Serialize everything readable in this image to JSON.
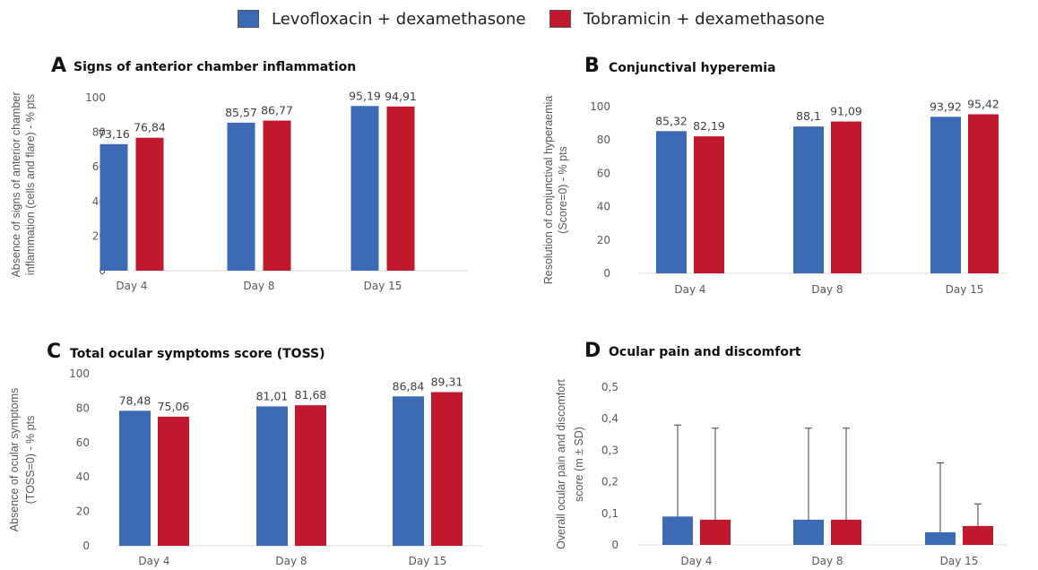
{
  "legend": {
    "items": [
      {
        "label": "Levofloxacin + dexamethasone",
        "color": "#3c6ab5"
      },
      {
        "label": "Tobramicin + dexamethasone",
        "color": "#c0192e"
      }
    ]
  },
  "chart_data": [
    {
      "type": "bar",
      "panel": "A",
      "title": "Signs of anterior chamber inflammation",
      "ylabel": [
        "Absence of signs of anterior chamber",
        "inflammation (cells and flare) - % pts"
      ],
      "categories": [
        "Day 4",
        "Day 8",
        "Day 15"
      ],
      "ylim": [
        0,
        100
      ],
      "yticks": [
        0,
        20,
        40,
        60,
        80,
        100
      ],
      "ytick_labels": [
        "0",
        "20",
        "40",
        "60",
        "80",
        "100"
      ],
      "series": [
        {
          "name": "Levofloxacin + dexamethasone",
          "values": [
            73.16,
            85.57,
            95.19
          ],
          "labels": [
            "73,16",
            "85,57",
            "95,19"
          ]
        },
        {
          "name": "Tobramicin + dexamethasone",
          "values": [
            76.84,
            86.77,
            94.91
          ],
          "labels": [
            "76,84",
            "86,77",
            "94,91"
          ]
        }
      ]
    },
    {
      "type": "bar",
      "panel": "B",
      "title": "Conjunctival hyperemia",
      "ylabel": [
        "Resolution of conjunctival hyperaemia",
        "(Score=0) - % pts"
      ],
      "categories": [
        "Day 4",
        "Day 8",
        "Day 15"
      ],
      "ylim": [
        0,
        100
      ],
      "yticks": [
        0,
        20,
        40,
        60,
        80,
        100
      ],
      "ytick_labels": [
        "0",
        "20",
        "40",
        "60",
        "80",
        "100"
      ],
      "series": [
        {
          "name": "Levofloxacin + dexamethasone",
          "values": [
            85.32,
            88.1,
            93.92
          ],
          "labels": [
            "85,32",
            "88,1",
            "93,92"
          ]
        },
        {
          "name": "Tobramicin + dexamethasone",
          "values": [
            82.19,
            91.09,
            95.42
          ],
          "labels": [
            "82,19",
            "91,09",
            "95,42"
          ]
        }
      ]
    },
    {
      "type": "bar",
      "panel": "C",
      "title": "Total ocular symptoms score  (TOSS)",
      "ylabel": [
        "Absence of ocular symptoms",
        "(TOSS=0) - % pts"
      ],
      "categories": [
        "Day 4",
        "Day 8",
        "Day 15"
      ],
      "ylim": [
        0,
        100
      ],
      "yticks": [
        0,
        20,
        40,
        60,
        80,
        100
      ],
      "ytick_labels": [
        "0",
        "20",
        "40",
        "60",
        "80",
        "100"
      ],
      "series": [
        {
          "name": "Levofloxacin + dexamethasone",
          "values": [
            78.48,
            81.01,
            86.84
          ],
          "labels": [
            "78,48",
            "81,01",
            "86,84"
          ]
        },
        {
          "name": "Tobramicin + dexamethasone",
          "values": [
            75.06,
            81.68,
            89.31
          ],
          "labels": [
            "75,06",
            "81,68",
            "89,31"
          ]
        }
      ]
    },
    {
      "type": "bar",
      "panel": "D",
      "title": "Ocular pain and discomfort",
      "ylabel": [
        "Overall ocular pain and discomfort",
        "score   (m ± SD)"
      ],
      "categories": [
        "Day 4",
        "Day 8",
        "Day 15"
      ],
      "ylim": [
        0,
        0.5
      ],
      "yticks": [
        0,
        0.1,
        0.2,
        0.3,
        0.4,
        0.5
      ],
      "ytick_labels": [
        "0",
        "0,1",
        "0,2",
        "0,3",
        "0,4",
        "0,5"
      ],
      "series": [
        {
          "name": "Levofloxacin + dexamethasone",
          "values": [
            0.09,
            0.08,
            0.04
          ],
          "error_upper": [
            0.38,
            0.37,
            0.26
          ]
        },
        {
          "name": "Tobramicin + dexamethasone",
          "values": [
            0.08,
            0.08,
            0.06
          ],
          "error_upper": [
            0.37,
            0.37,
            0.13
          ]
        }
      ]
    }
  ]
}
